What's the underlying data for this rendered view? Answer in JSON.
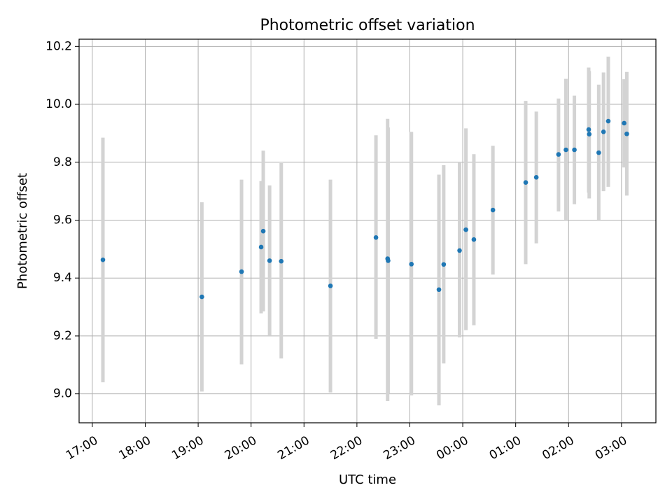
{
  "chart_data": {
    "type": "scatter",
    "title": "Photometric offset variation",
    "xlabel": "UTC time",
    "ylabel": "Photometric offset",
    "x_axis": {
      "unit": "hours from 17:00 UTC",
      "range": [
        -0.25,
        10.65
      ],
      "ticks": [
        {
          "value": 0,
          "label": "17:00"
        },
        {
          "value": 1,
          "label": "18:00"
        },
        {
          "value": 2,
          "label": "19:00"
        },
        {
          "value": 3,
          "label": "20:00"
        },
        {
          "value": 4,
          "label": "21:00"
        },
        {
          "value": 5,
          "label": "22:00"
        },
        {
          "value": 6,
          "label": "23:00"
        },
        {
          "value": 7,
          "label": "00:00"
        },
        {
          "value": 8,
          "label": "01:00"
        },
        {
          "value": 9,
          "label": "02:00"
        },
        {
          "value": 10,
          "label": "03:00"
        }
      ],
      "tick_label_rotation": 30
    },
    "y_axis": {
      "range": [
        8.9,
        10.225
      ],
      "ticks": [
        {
          "value": 9.0,
          "label": "9.0"
        },
        {
          "value": 9.2,
          "label": "9.2"
        },
        {
          "value": 9.4,
          "label": "9.4"
        },
        {
          "value": 9.6,
          "label": "9.6"
        },
        {
          "value": 9.8,
          "label": "9.8"
        },
        {
          "value": 10.0,
          "label": "10.0"
        },
        {
          "value": 10.2,
          "label": "10.2"
        }
      ]
    },
    "grid": true,
    "legend": "none",
    "colors": {
      "marker": "#1f77b4",
      "errorbar": "#d3d3d3",
      "grid": "#b0b0b0"
    },
    "series": [
      {
        "points": [
          {
            "x": 0.2,
            "y": 9.463,
            "lo": 9.04,
            "hi": 9.885
          },
          {
            "x": 2.07,
            "y": 9.335,
            "lo": 9.008,
            "hi": 9.662
          },
          {
            "x": 2.82,
            "y": 9.422,
            "lo": 9.102,
            "hi": 9.74
          },
          {
            "x": 3.19,
            "y": 9.507,
            "lo": 9.278,
            "hi": 9.735
          },
          {
            "x": 3.23,
            "y": 9.562,
            "lo": 9.285,
            "hi": 9.84
          },
          {
            "x": 3.35,
            "y": 9.46,
            "lo": 9.2,
            "hi": 9.72
          },
          {
            "x": 3.57,
            "y": 9.458,
            "lo": 9.122,
            "hi": 9.797
          },
          {
            "x": 4.5,
            "y": 9.373,
            "lo": 9.005,
            "hi": 9.74
          },
          {
            "x": 5.36,
            "y": 9.54,
            "lo": 9.19,
            "hi": 9.893
          },
          {
            "x": 5.58,
            "y": 9.467,
            "lo": 8.975,
            "hi": 9.95
          },
          {
            "x": 5.59,
            "y": 9.46,
            "lo": 9.0,
            "hi": 9.92
          },
          {
            "x": 6.03,
            "y": 9.448,
            "lo": 8.995,
            "hi": 9.905
          },
          {
            "x": 6.55,
            "y": 9.36,
            "lo": 8.96,
            "hi": 9.757
          },
          {
            "x": 6.64,
            "y": 9.447,
            "lo": 9.105,
            "hi": 9.79
          },
          {
            "x": 6.94,
            "y": 9.495,
            "lo": 9.195,
            "hi": 9.8
          },
          {
            "x": 7.06,
            "y": 9.567,
            "lo": 9.22,
            "hi": 9.917
          },
          {
            "x": 7.21,
            "y": 9.533,
            "lo": 9.237,
            "hi": 9.828
          },
          {
            "x": 7.57,
            "y": 9.635,
            "lo": 9.412,
            "hi": 9.857
          },
          {
            "x": 8.19,
            "y": 9.73,
            "lo": 9.448,
            "hi": 10.012
          },
          {
            "x": 8.39,
            "y": 9.748,
            "lo": 9.52,
            "hi": 9.975
          },
          {
            "x": 8.81,
            "y": 9.827,
            "lo": 9.63,
            "hi": 10.02
          },
          {
            "x": 8.95,
            "y": 9.843,
            "lo": 9.597,
            "hi": 10.088
          },
          {
            "x": 9.11,
            "y": 9.843,
            "lo": 9.655,
            "hi": 10.03
          },
          {
            "x": 9.38,
            "y": 9.913,
            "lo": 9.695,
            "hi": 10.127
          },
          {
            "x": 9.39,
            "y": 9.897,
            "lo": 9.675,
            "hi": 10.115
          },
          {
            "x": 9.57,
            "y": 9.833,
            "lo": 9.597,
            "hi": 10.068
          },
          {
            "x": 9.66,
            "y": 9.905,
            "lo": 9.7,
            "hi": 10.11
          },
          {
            "x": 9.75,
            "y": 9.942,
            "lo": 9.715,
            "hi": 10.165
          },
          {
            "x": 10.05,
            "y": 9.935,
            "lo": 9.782,
            "hi": 10.087
          },
          {
            "x": 10.1,
            "y": 9.898,
            "lo": 9.685,
            "hi": 10.112
          }
        ]
      }
    ]
  }
}
